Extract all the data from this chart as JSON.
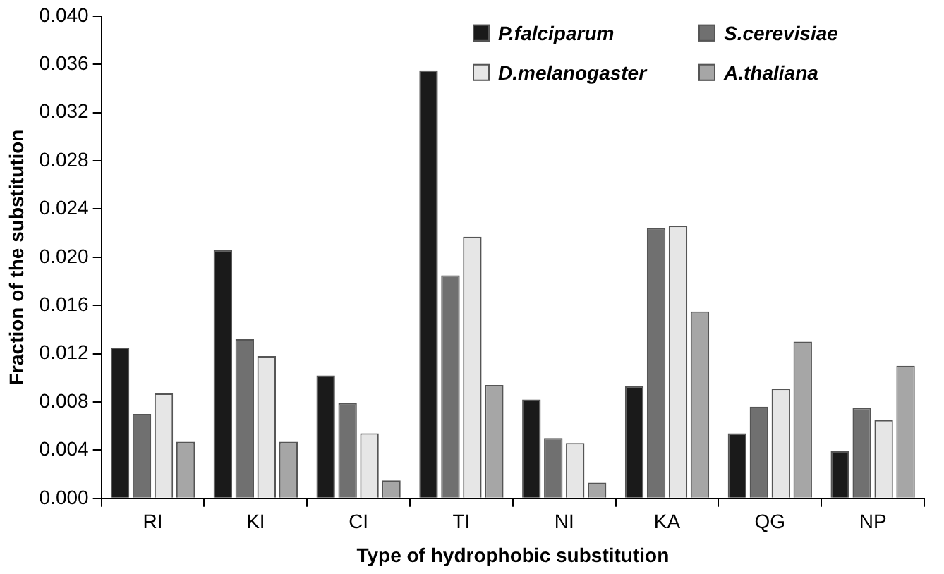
{
  "chart_data": {
    "type": "bar",
    "xlabel": "Type of hydrophobic substitution",
    "ylabel": "Fraction of the substitution",
    "categories": [
      "RI",
      "KI",
      "CI",
      "TI",
      "NI",
      "KA",
      "QG",
      "NP"
    ],
    "series": [
      {
        "name": "P.falciparum",
        "color": "#1a1a1a",
        "values": [
          0.0125,
          0.0206,
          0.0102,
          0.0355,
          0.0082,
          0.0093,
          0.0054,
          0.0039
        ]
      },
      {
        "name": "S.cerevisiae",
        "color": "#707070",
        "values": [
          0.007,
          0.0132,
          0.0079,
          0.0185,
          0.005,
          0.0224,
          0.0076,
          0.0075
        ]
      },
      {
        "name": "D.melanogaster",
        "color": "#e6e6e6",
        "values": [
          0.0087,
          0.0118,
          0.0054,
          0.0217,
          0.0046,
          0.0226,
          0.0091,
          0.0065
        ]
      },
      {
        "name": "A.thaliana",
        "color": "#a6a6a6",
        "values": [
          0.0047,
          0.0047,
          0.0015,
          0.0094,
          0.0013,
          0.0155,
          0.013,
          0.011
        ]
      }
    ],
    "ylim": [
      0,
      0.04
    ],
    "yticks": [
      {
        "value": 0,
        "label": "0.000"
      },
      {
        "value": 0.004,
        "label": "0.004"
      },
      {
        "value": 0.008,
        "label": "0.008"
      },
      {
        "value": 0.012,
        "label": "0.012"
      },
      {
        "value": 0.016,
        "label": "0.016"
      },
      {
        "value": 0.02,
        "label": "0.020"
      },
      {
        "value": 0.024,
        "label": "0.024"
      },
      {
        "value": 0.028,
        "label": "0.028"
      },
      {
        "value": 0.032,
        "label": "0.032"
      },
      {
        "value": 0.036,
        "label": "0.036"
      },
      {
        "value": 0.04,
        "label": "0.040"
      }
    ],
    "grid": false,
    "legend": "top right"
  }
}
